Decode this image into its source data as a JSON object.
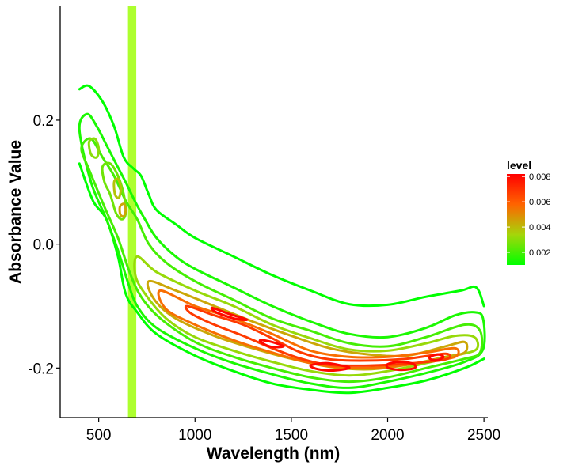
{
  "chart_data": {
    "type": "contour",
    "xlabel": "Wavelength (nm)",
    "ylabel": "Absorbance Value",
    "xlim": [
      300,
      2520
    ],
    "ylim": [
      -0.28,
      0.385
    ],
    "x_ticks": [
      500,
      1000,
      1500,
      2000,
      2500
    ],
    "x_tick_labels": [
      "500",
      "1000",
      "1500",
      "2000",
      "2500"
    ],
    "y_ticks": [
      0.2,
      0.0,
      -0.2
    ],
    "y_tick_labels": [
      "0.2",
      "0.0",
      "-0.2"
    ],
    "grid": false,
    "highlight_band": {
      "x_range": [
        652,
        695
      ],
      "color": "#adff2f"
    },
    "legend": {
      "title": "level",
      "position": "right",
      "min": 0.001,
      "max": 0.0082,
      "ticks": [
        0.002,
        0.004,
        0.006,
        0.008
      ],
      "tick_labels": [
        "0.002",
        "0.004",
        "0.006",
        "0.008"
      ],
      "gradient": [
        "#00ff00",
        "#a5d60a",
        "#ff6400",
        "#ff0000"
      ]
    },
    "contours": [
      {
        "level": 0.0008,
        "closed": false,
        "points": [
          [
            400,
            0.25
          ],
          [
            450,
            0.255
          ],
          [
            520,
            0.23
          ],
          [
            580,
            0.19
          ],
          [
            630,
            0.14
          ],
          [
            680,
            0.122
          ],
          [
            720,
            0.11
          ],
          [
            760,
            0.08
          ],
          [
            800,
            0.055
          ],
          [
            900,
            0.032
          ],
          [
            1000,
            0.01
          ],
          [
            1200,
            -0.02
          ],
          [
            1400,
            -0.05
          ],
          [
            1600,
            -0.075
          ],
          [
            1800,
            -0.097
          ],
          [
            2000,
            -0.098
          ],
          [
            2200,
            -0.085
          ],
          [
            2380,
            -0.075
          ],
          [
            2460,
            -0.07
          ],
          [
            2500,
            -0.1
          ]
        ]
      },
      {
        "level": 0.0008,
        "closed": false,
        "points": [
          [
            400,
            0.13
          ],
          [
            470,
            0.07
          ],
          [
            540,
            0.04
          ],
          [
            600,
            -0.02
          ],
          [
            640,
            -0.08
          ],
          [
            700,
            -0.11
          ],
          [
            800,
            -0.145
          ],
          [
            1000,
            -0.18
          ],
          [
            1200,
            -0.205
          ],
          [
            1400,
            -0.225
          ],
          [
            1600,
            -0.235
          ],
          [
            1800,
            -0.24
          ],
          [
            2000,
            -0.232
          ],
          [
            2200,
            -0.22
          ],
          [
            2400,
            -0.2
          ],
          [
            2500,
            -0.185
          ]
        ]
      },
      {
        "level": 0.0014,
        "closed": true,
        "points": [
          [
            400,
            0.185
          ],
          [
            440,
            0.21
          ],
          [
            490,
            0.19
          ],
          [
            540,
            0.16
          ],
          [
            590,
            0.13
          ],
          [
            640,
            0.1
          ],
          [
            690,
            0.068
          ],
          [
            740,
            0.04
          ],
          [
            800,
            0.01
          ],
          [
            900,
            -0.02
          ],
          [
            1000,
            -0.04
          ],
          [
            1200,
            -0.07
          ],
          [
            1400,
            -0.1
          ],
          [
            1600,
            -0.125
          ],
          [
            1800,
            -0.145
          ],
          [
            2000,
            -0.15
          ],
          [
            2200,
            -0.135
          ],
          [
            2350,
            -0.115
          ],
          [
            2450,
            -0.11
          ],
          [
            2495,
            -0.12
          ],
          [
            2495,
            -0.17
          ],
          [
            2400,
            -0.19
          ],
          [
            2200,
            -0.208
          ],
          [
            2000,
            -0.222
          ],
          [
            1800,
            -0.232
          ],
          [
            1600,
            -0.225
          ],
          [
            1400,
            -0.21
          ],
          [
            1200,
            -0.192
          ],
          [
            1000,
            -0.168
          ],
          [
            800,
            -0.135
          ],
          [
            700,
            -0.1
          ],
          [
            650,
            -0.06
          ],
          [
            600,
            -0.01
          ],
          [
            540,
            0.04
          ],
          [
            460,
            0.1
          ]
        ]
      },
      {
        "level": 0.002,
        "closed": true,
        "points": [
          [
            410,
            0.155
          ],
          [
            460,
            0.17
          ],
          [
            520,
            0.14
          ],
          [
            580,
            0.11
          ],
          [
            640,
            0.07
          ],
          [
            700,
            0.04
          ],
          [
            760,
            0.0
          ],
          [
            850,
            -0.03
          ],
          [
            1000,
            -0.06
          ],
          [
            1200,
            -0.09
          ],
          [
            1400,
            -0.12
          ],
          [
            1600,
            -0.14
          ],
          [
            1800,
            -0.16
          ],
          [
            2000,
            -0.165
          ],
          [
            2200,
            -0.15
          ],
          [
            2400,
            -0.13
          ],
          [
            2480,
            -0.14
          ],
          [
            2480,
            -0.175
          ],
          [
            2400,
            -0.185
          ],
          [
            2200,
            -0.2
          ],
          [
            2000,
            -0.215
          ],
          [
            1800,
            -0.222
          ],
          [
            1600,
            -0.215
          ],
          [
            1400,
            -0.2
          ],
          [
            1200,
            -0.182
          ],
          [
            1000,
            -0.158
          ],
          [
            820,
            -0.12
          ],
          [
            720,
            -0.085
          ],
          [
            660,
            -0.045
          ],
          [
            600,
            0.01
          ],
          [
            530,
            0.06
          ],
          [
            450,
            0.12
          ]
        ]
      },
      {
        "level": 0.0026,
        "closed": true,
        "points": [
          [
            520,
            0.125
          ],
          [
            560,
            0.13
          ],
          [
            600,
            0.11
          ],
          [
            630,
            0.08
          ],
          [
            640,
            0.05
          ],
          [
            620,
            0.04
          ],
          [
            590,
            0.05
          ],
          [
            560,
            0.08
          ],
          [
            530,
            0.1
          ]
        ]
      },
      {
        "level": 0.003,
        "closed": true,
        "points": [
          [
            450,
            0.165
          ],
          [
            480,
            0.17
          ],
          [
            500,
            0.155
          ],
          [
            490,
            0.14
          ],
          [
            460,
            0.145
          ]
        ]
      },
      {
        "level": 0.0032,
        "closed": true,
        "points": [
          [
            700,
            -0.02
          ],
          [
            800,
            -0.045
          ],
          [
            1000,
            -0.075
          ],
          [
            1200,
            -0.1
          ],
          [
            1400,
            -0.13
          ],
          [
            1600,
            -0.152
          ],
          [
            1800,
            -0.17
          ],
          [
            2000,
            -0.172
          ],
          [
            2200,
            -0.16
          ],
          [
            2350,
            -0.148
          ],
          [
            2450,
            -0.15
          ],
          [
            2460,
            -0.17
          ],
          [
            2350,
            -0.18
          ],
          [
            2200,
            -0.192
          ],
          [
            2000,
            -0.205
          ],
          [
            1800,
            -0.212
          ],
          [
            1600,
            -0.205
          ],
          [
            1400,
            -0.19
          ],
          [
            1200,
            -0.172
          ],
          [
            1000,
            -0.15
          ],
          [
            850,
            -0.12
          ],
          [
            740,
            -0.08
          ],
          [
            690,
            -0.05
          ]
        ]
      },
      {
        "level": 0.0038,
        "closed": true,
        "points": [
          [
            580,
            0.1
          ],
          [
            600,
            0.105
          ],
          [
            615,
            0.09
          ],
          [
            605,
            0.075
          ],
          [
            585,
            0.08
          ]
        ]
      },
      {
        "level": 0.0044,
        "closed": true,
        "points": [
          [
            760,
            -0.06
          ],
          [
            900,
            -0.075
          ],
          [
            1100,
            -0.1
          ],
          [
            1300,
            -0.125
          ],
          [
            1500,
            -0.148
          ],
          [
            1700,
            -0.168
          ],
          [
            1900,
            -0.178
          ],
          [
            2100,
            -0.18
          ],
          [
            2300,
            -0.165
          ],
          [
            2400,
            -0.158
          ],
          [
            2400,
            -0.175
          ],
          [
            2300,
            -0.182
          ],
          [
            2100,
            -0.195
          ],
          [
            1900,
            -0.202
          ],
          [
            1700,
            -0.198
          ],
          [
            1500,
            -0.185
          ],
          [
            1300,
            -0.168
          ],
          [
            1100,
            -0.148
          ],
          [
            900,
            -0.12
          ],
          [
            790,
            -0.09
          ]
        ]
      },
      {
        "level": 0.0044,
        "closed": true,
        "points": [
          [
            610,
            0.06
          ],
          [
            630,
            0.065
          ],
          [
            640,
            0.055
          ],
          [
            630,
            0.045
          ],
          [
            612,
            0.048
          ]
        ]
      },
      {
        "level": 0.0056,
        "closed": true,
        "points": [
          [
            820,
            -0.075
          ],
          [
            1000,
            -0.1
          ],
          [
            1200,
            -0.12
          ],
          [
            1400,
            -0.145
          ],
          [
            1600,
            -0.172
          ],
          [
            1800,
            -0.182
          ],
          [
            2000,
            -0.182
          ],
          [
            2200,
            -0.175
          ],
          [
            2350,
            -0.168
          ],
          [
            2350,
            -0.182
          ],
          [
            2200,
            -0.19
          ],
          [
            2000,
            -0.198
          ],
          [
            1800,
            -0.2
          ],
          [
            1600,
            -0.192
          ],
          [
            1400,
            -0.175
          ],
          [
            1200,
            -0.155
          ],
          [
            1000,
            -0.13
          ],
          [
            850,
            -0.105
          ]
        ]
      },
      {
        "level": 0.0068,
        "closed": true,
        "points": [
          [
            960,
            -0.1
          ],
          [
            1100,
            -0.115
          ],
          [
            1250,
            -0.13
          ],
          [
            1400,
            -0.152
          ],
          [
            1550,
            -0.175
          ],
          [
            1700,
            -0.186
          ],
          [
            1900,
            -0.188
          ],
          [
            2100,
            -0.185
          ],
          [
            2300,
            -0.177
          ],
          [
            2300,
            -0.186
          ],
          [
            2100,
            -0.193
          ],
          [
            1900,
            -0.196
          ],
          [
            1700,
            -0.195
          ],
          [
            1550,
            -0.185
          ],
          [
            1400,
            -0.168
          ],
          [
            1250,
            -0.148
          ],
          [
            1100,
            -0.13
          ],
          [
            980,
            -0.112
          ]
        ]
      },
      {
        "level": 0.008,
        "closed": true,
        "points": [
          [
            1090,
            -0.103
          ],
          [
            1180,
            -0.113
          ],
          [
            1270,
            -0.122
          ],
          [
            1200,
            -0.12
          ],
          [
            1110,
            -0.11
          ]
        ]
      },
      {
        "level": 0.008,
        "closed": true,
        "points": [
          [
            1340,
            -0.155
          ],
          [
            1400,
            -0.158
          ],
          [
            1460,
            -0.165
          ],
          [
            1400,
            -0.166
          ],
          [
            1350,
            -0.16
          ]
        ]
      },
      {
        "level": 0.008,
        "closed": true,
        "points": [
          [
            1600,
            -0.196
          ],
          [
            1680,
            -0.192
          ],
          [
            1760,
            -0.196
          ],
          [
            1800,
            -0.2
          ],
          [
            1720,
            -0.204
          ],
          [
            1640,
            -0.202
          ]
        ]
      },
      {
        "level": 0.008,
        "closed": true,
        "points": [
          [
            2000,
            -0.194
          ],
          [
            2060,
            -0.19
          ],
          [
            2130,
            -0.193
          ],
          [
            2140,
            -0.2
          ],
          [
            2070,
            -0.203
          ],
          [
            2005,
            -0.2
          ]
        ]
      },
      {
        "level": 0.008,
        "closed": true,
        "points": [
          [
            2220,
            -0.182
          ],
          [
            2260,
            -0.178
          ],
          [
            2290,
            -0.182
          ],
          [
            2260,
            -0.187
          ],
          [
            2225,
            -0.186
          ]
        ]
      }
    ]
  }
}
